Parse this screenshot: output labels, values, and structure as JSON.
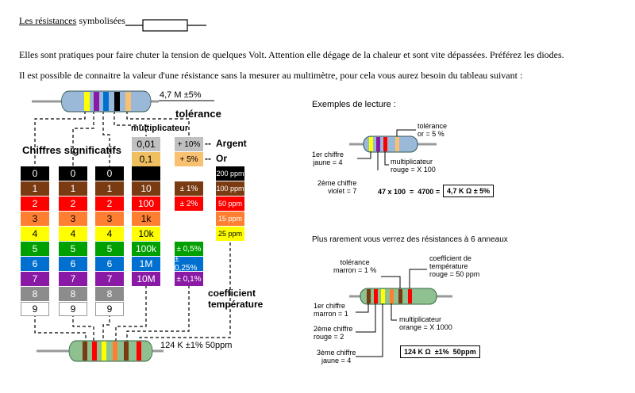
{
  "header": {
    "title_underlined": "Les résistances",
    "title_rest": " symbolisées",
    "para1": "Elles sont pratiques pour faire chuter la tension de quelques Volt. Attention elle dégage de la chaleur et sont vite dépassées. Préférez les diodes.",
    "para2": "Il est possible de connaitre la valeur d'une résistance sans la mesurer au multimètre, pour cela vous aurez besoin du tableau suivant :"
  },
  "table": {
    "top_resistor_label": "4,7 M ±5%",
    "bottom_resistor_label": "124 K ±1% 50ppm",
    "heading_tolerance": "tolérance",
    "heading_multiplier": "multiplicateur",
    "heading_digits": "Chiffres significatifs",
    "heading_tempco": "coefficient température",
    "digits": [
      "0",
      "1",
      "2",
      "3",
      "4",
      "5",
      "6",
      "7",
      "8",
      "9"
    ],
    "digit_colors": [
      "#000000",
      "#7a3a12",
      "#ff0000",
      "#ff7f32",
      "#ffff00",
      "#00a000",
      "#0070d0",
      "#8a1aa6",
      "#8c8c8c",
      "#ffffff"
    ],
    "digit_text_colors": [
      "#ffffff",
      "#ffffff",
      "#ffffff",
      "#000000",
      "#000000",
      "#ffffff",
      "#ffffff",
      "#ffffff",
      "#ffffff",
      "#000000"
    ],
    "mult_extra": [
      {
        "label": "0,01",
        "color": "#c0c0c0"
      },
      {
        "label": "0,1",
        "color": "#f0c060"
      }
    ],
    "multipliers": [
      "",
      "10",
      "100",
      "1k",
      "10k",
      "100k",
      "1M",
      "10M"
    ],
    "tolerance_extra": [
      {
        "label": "+ 10%",
        "color": "#c0c0c0",
        "name": "Argent"
      },
      {
        "label": "+ 5%",
        "color": "#f8c070",
        "name": "Or"
      }
    ],
    "tolerances": [
      "",
      "± 1%",
      "± 2%",
      "",
      "",
      "± 0,5%",
      "± 0,25%",
      "± 0,1%"
    ],
    "tempco": [
      "200 ppm",
      "100 ppm",
      "50 ppm",
      "15 ppm",
      "25 ppm"
    ],
    "tempco_colors": [
      "#000000",
      "#7a3a12",
      "#ff0000",
      "#ff7f32",
      "#ffff00"
    ],
    "tempco_text_colors": [
      "#ffffff",
      "#ffffff",
      "#ffffff",
      "#ffffff",
      "#000000"
    ],
    "dashes": "--"
  },
  "example1": {
    "heading": "Exemples de lecture :",
    "tolerance": "tolérance\nor = 5 %",
    "first": "1er chiffre\njaune = 4",
    "second": "2ème chiffre\nviolet = 7",
    "multiplier": "multiplicateur\nrouge = X 100",
    "formula": "47 x 100  =  4700 =",
    "result": "4,7 K Ω ± 5%"
  },
  "example2": {
    "heading": "Plus rarement vous verrez des résistances à 6 anneaux",
    "tolerance": "tolérance\nmarron = 1 %",
    "tempco": "coefficient de\ntempérature\nrouge = 50 ppm",
    "first": "1er chiffre\nmarron = 1",
    "second": "2ème chiffre\nrouge = 2",
    "third": "3ème chiffre\njaune = 4",
    "multiplier": "multiplicateur\norange = X 1000",
    "result": "124 K Ω  ±1%  50ppm"
  }
}
